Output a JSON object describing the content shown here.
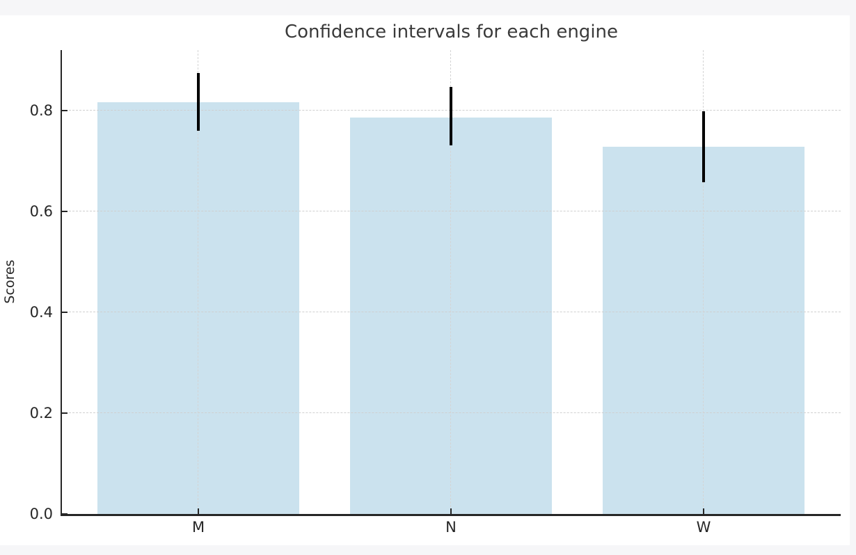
{
  "window": {
    "background_color": "#f6f6f8",
    "figure_background_color": "#ffffff"
  },
  "chart_data": {
    "type": "bar",
    "title": "Confidence intervals for each engine",
    "xlabel": "",
    "ylabel": "Scores",
    "categories": [
      "M",
      "N",
      "W"
    ],
    "values": [
      0.817,
      0.786,
      0.728
    ],
    "ci_low": [
      0.76,
      0.731,
      0.658
    ],
    "ci_high": [
      0.875,
      0.847,
      0.799
    ],
    "yticks": [
      0.0,
      0.2,
      0.4,
      0.6,
      0.8
    ],
    "ytick_labels": [
      "0.0",
      "0.2",
      "0.4",
      "0.6",
      "0.8"
    ],
    "ylim": [
      0,
      0.92
    ],
    "grid": "both-dashed",
    "legend": "none",
    "bar_color": "#cbe2ee",
    "error_color": "#000000",
    "grid_color": "#cfcfcf",
    "axis_color": "#262626"
  }
}
